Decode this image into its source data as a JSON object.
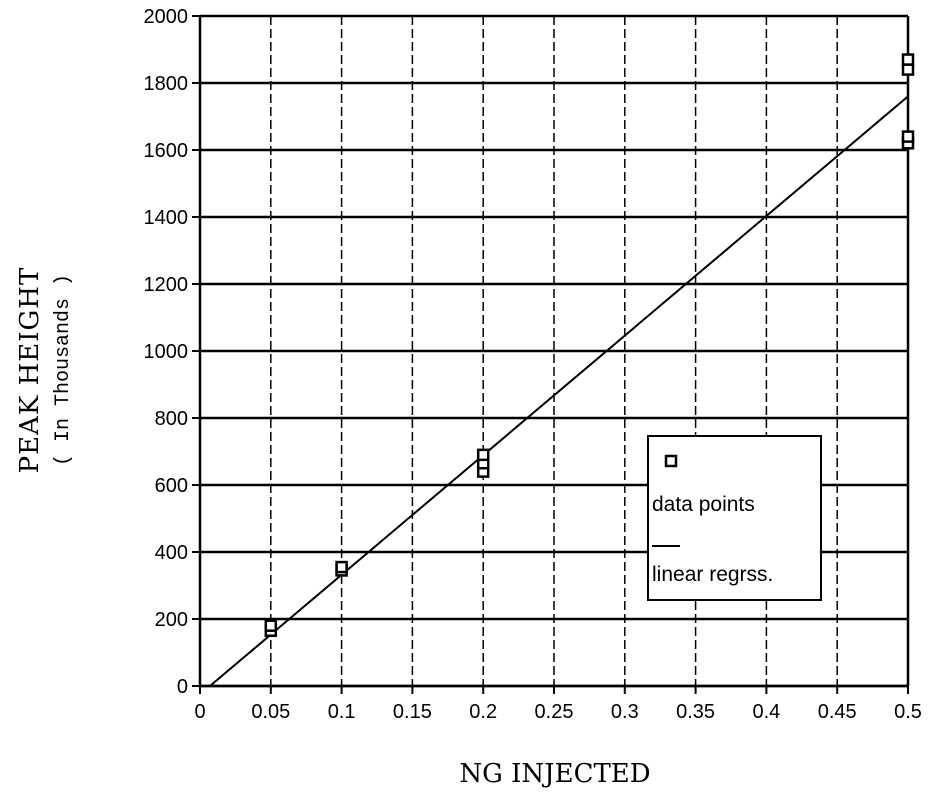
{
  "chart_data": {
    "type": "scatter",
    "xlabel": "NG INJECTED",
    "ylabel": "PEAK HEIGHT",
    "ylabel_sub": "( In Thousands )",
    "xlim": [
      0,
      0.5
    ],
    "ylim": [
      0,
      2000
    ],
    "x_ticks": [
      0,
      0.05,
      0.1,
      0.15,
      0.2,
      0.25,
      0.3,
      0.35,
      0.4,
      0.45,
      0.5
    ],
    "x_tick_labels": [
      "0",
      "0.05",
      "0.1",
      "0.15",
      "0.2",
      "0.25",
      "0.3",
      "0.35",
      "0.4",
      "0.45",
      "0.5"
    ],
    "y_ticks": [
      0,
      200,
      400,
      600,
      800,
      1000,
      1200,
      1400,
      1600,
      1800,
      2000
    ],
    "y_tick_labels": [
      "0",
      "200",
      "400",
      "600",
      "800",
      "1000",
      "1200",
      "1400",
      "1600",
      "1800",
      "2000"
    ],
    "grid": "horizontal solid, vertical dashed",
    "legend_position": "lower-right",
    "series": [
      {
        "name": "data points",
        "kind": "scatter",
        "marker": "square",
        "x": [
          0.05,
          0.05,
          0.1,
          0.1,
          0.2,
          0.2,
          0.2,
          0.5,
          0.5,
          0.5,
          0.5
        ],
        "y": [
          165,
          180,
          345,
          355,
          640,
          665,
          690,
          1620,
          1640,
          1840,
          1870
        ]
      },
      {
        "name": "linear regrss.",
        "kind": "line",
        "x": [
          0,
          0.5
        ],
        "y": [
          -25,
          1760
        ]
      }
    ],
    "legend": {
      "entries": [
        {
          "label": "data points",
          "symbol": "square"
        },
        {
          "label": "linear regrss.",
          "symbol": "line"
        }
      ]
    }
  }
}
